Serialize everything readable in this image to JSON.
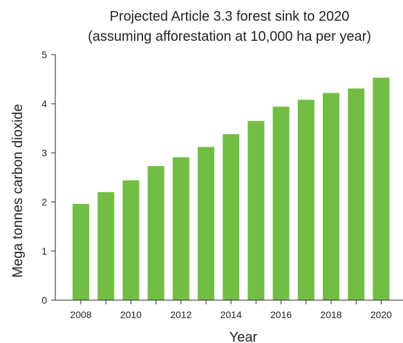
{
  "chart_data": {
    "type": "bar",
    "title": [
      "Projected Article 3.3 forest sink to 2020",
      "(assuming afforestation at 10,000 ha per year)"
    ],
    "xlabel": "Year",
    "ylabel": "Mega tonnes carbon dioxide",
    "categories": [
      "2008",
      "2009",
      "2010",
      "2011",
      "2012",
      "2013",
      "2014",
      "2015",
      "2016",
      "2017",
      "2018",
      "2019",
      "2020"
    ],
    "x_tick_labels": [
      "2008",
      "2010",
      "2012",
      "2014",
      "2016",
      "2018",
      "2020"
    ],
    "values": [
      1.96,
      2.2,
      2.44,
      2.73,
      2.91,
      3.12,
      3.38,
      3.65,
      3.94,
      4.08,
      4.22,
      4.31,
      4.53
    ],
    "ylim": [
      0,
      5
    ],
    "y_ticks": [
      "0",
      "1",
      "2",
      "3",
      "4",
      "5"
    ],
    "grid": false,
    "bar_color": "#72be44"
  }
}
